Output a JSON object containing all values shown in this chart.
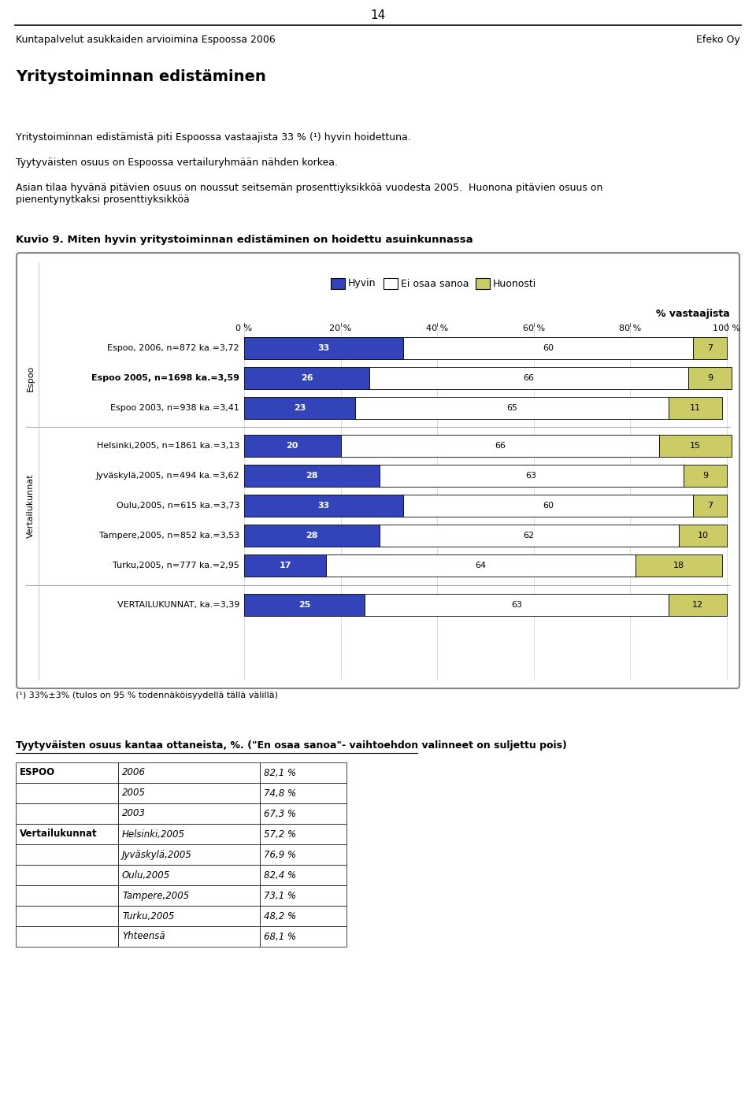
{
  "page_number": "14",
  "header_left": "Kuntapalvelut asukkaiden arvioimina Espoossa 2006",
  "header_right": "Efeko Oy",
  "section_title": "Yritystoiminnan edistäminen",
  "body_text_1": "Yritystoiminnan edistämistä piti Espoossa vastaajista 33 % (¹) hyvin hoidettuna.",
  "body_text_2": "Tyytyväisten osuus on Espoossa vertailuryhmään nähden korkea.",
  "body_text_3": "Asian tilaa hyvänä pitävien osuus on noussut seitsemän prosenttiyksikköä vuodesta 2005.  Huonona pitävien osuus on\npienentynytkaksi prosenttiyksikköä",
  "chart_title": "Kuvio 9. Miten hyvin yritystoiminnan edistäminen on hoidettu asuinkunnassa",
  "legend_items": [
    "Hyvin",
    "Ei osaa sanoa",
    "Huonosti"
  ],
  "x_axis_label": "% vastaajista",
  "x_tick_labels": [
    "0 %",
    "20 %",
    "40 %",
    "60 %",
    "80 %",
    "100 %"
  ],
  "rows": [
    {
      "label": "Espoo, 2006, n=872 ka.=3,72",
      "hyvin": 33,
      "ei_osaa": 60,
      "huonosti": 7,
      "group": "Espoo",
      "bold": false
    },
    {
      "label": "Espoo 2005, n=1698 ka.=3,59",
      "hyvin": 26,
      "ei_osaa": 66,
      "huonosti": 9,
      "group": "Espoo",
      "bold": true
    },
    {
      "label": "Espoo 2003, n=938 ka.=3,41",
      "hyvin": 23,
      "ei_osaa": 65,
      "huonosti": 11,
      "group": "Espoo",
      "bold": false
    },
    {
      "label": "Helsinki,2005, n=1861 ka.=3,13",
      "hyvin": 20,
      "ei_osaa": 66,
      "huonosti": 15,
      "group": "Vertailukunnat",
      "bold": false
    },
    {
      "label": "Jyväskylä,2005, n=494 ka.=3,62",
      "hyvin": 28,
      "ei_osaa": 63,
      "huonosti": 9,
      "group": "Vertailukunnat",
      "bold": false
    },
    {
      "label": "Oulu,2005, n=615 ka.=3,73",
      "hyvin": 33,
      "ei_osaa": 60,
      "huonosti": 7,
      "group": "Vertailukunnat",
      "bold": false
    },
    {
      "label": "Tampere,2005, n=852 ka.=3,53",
      "hyvin": 28,
      "ei_osaa": 62,
      "huonosti": 10,
      "group": "Vertailukunnat",
      "bold": false
    },
    {
      "label": "Turku,2005, n=777 ka.=2,95",
      "hyvin": 17,
      "ei_osaa": 64,
      "huonosti": 18,
      "group": "Vertailukunnat",
      "bold": false
    },
    {
      "label": "VERTAILUKUNNAT, ka.=3,39",
      "hyvin": 25,
      "ei_osaa": 63,
      "huonosti": 12,
      "group": "TOTAL",
      "bold": false
    }
  ],
  "espoo_group_label": "Espoo",
  "vertailu_group_label": "Vertailukunnat",
  "footnote": "(¹) 33%±3% (tulos on 95 % todennäköisyydellä tällä välillä)",
  "table_title": "Tyytyväisten osuus kantaa ottaneista, %. (\"En osaa sanoa\"- vaihtoehdon valinneet on suljettu pois)",
  "table_rows": [
    {
      "col1": "ESPOO",
      "col2": "2006",
      "col3": "82,1 %",
      "bold_col1": true
    },
    {
      "col1": "",
      "col2": "2005",
      "col3": "74,8 %",
      "bold_col1": false
    },
    {
      "col1": "",
      "col2": "2003",
      "col3": "67,3 %",
      "bold_col1": false
    },
    {
      "col1": "Vertailukunnat",
      "col2": "Helsinki,2005",
      "col3": "57,2 %",
      "bold_col1": true
    },
    {
      "col1": "",
      "col2": "Jyväskylä,2005",
      "col3": "76,9 %",
      "bold_col1": false
    },
    {
      "col1": "",
      "col2": "Oulu,2005",
      "col3": "82,4 %",
      "bold_col1": false
    },
    {
      "col1": "",
      "col2": "Tampere,2005",
      "col3": "73,1 %",
      "bold_col1": false
    },
    {
      "col1": "",
      "col2": "Turku,2005",
      "col3": "48,2 %",
      "bold_col1": false
    },
    {
      "col1": "",
      "col2": "Yhteensä",
      "col3": "68,1 %",
      "bold_col1": false
    }
  ],
  "bar_color_hyvin": "#3344bb",
  "bar_color_ei_osaa": "#ffffff",
  "bar_color_huonosti": "#cccc66",
  "chart_bg": "#ffffff",
  "chart_border": "#888888"
}
